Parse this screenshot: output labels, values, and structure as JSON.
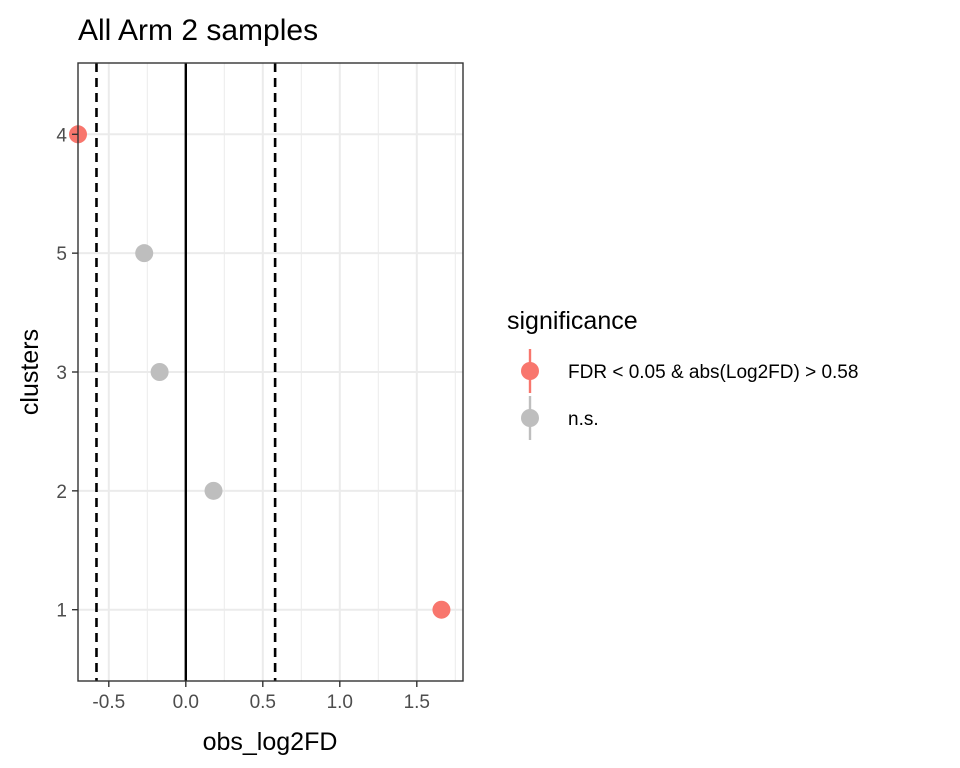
{
  "chart_data": {
    "type": "scatter",
    "title": "All Arm 2 samples",
    "xlabel": "obs_log2FD",
    "ylabel": "clusters",
    "xlim": [
      -0.7,
      1.8
    ],
    "x_ticks": [
      -0.5,
      0.0,
      0.5,
      1.0,
      1.5
    ],
    "x_tick_labels": [
      "-0.5",
      "0.0",
      "0.5",
      "1.0",
      "1.5"
    ],
    "y_categories": [
      "1",
      "2",
      "3",
      "5",
      "4"
    ],
    "grid": true,
    "reference_lines": {
      "solid": [
        0
      ],
      "dashed": [
        -0.58,
        0.58
      ]
    },
    "legend": {
      "title": "significance",
      "position": "right",
      "entries": [
        {
          "label": "FDR < 0.05 & abs(Log2FD) > 0.58",
          "color": "#F8766D"
        },
        {
          "label": "n.s.",
          "color": "#BEBEBE"
        }
      ]
    },
    "points": [
      {
        "cluster": "4",
        "x": -0.7,
        "significance": 0
      },
      {
        "cluster": "5",
        "x": -0.27,
        "significance": 1
      },
      {
        "cluster": "3",
        "x": -0.17,
        "significance": 1
      },
      {
        "cluster": "2",
        "x": 0.18,
        "significance": 1
      },
      {
        "cluster": "1",
        "x": 1.66,
        "significance": 0
      }
    ]
  }
}
